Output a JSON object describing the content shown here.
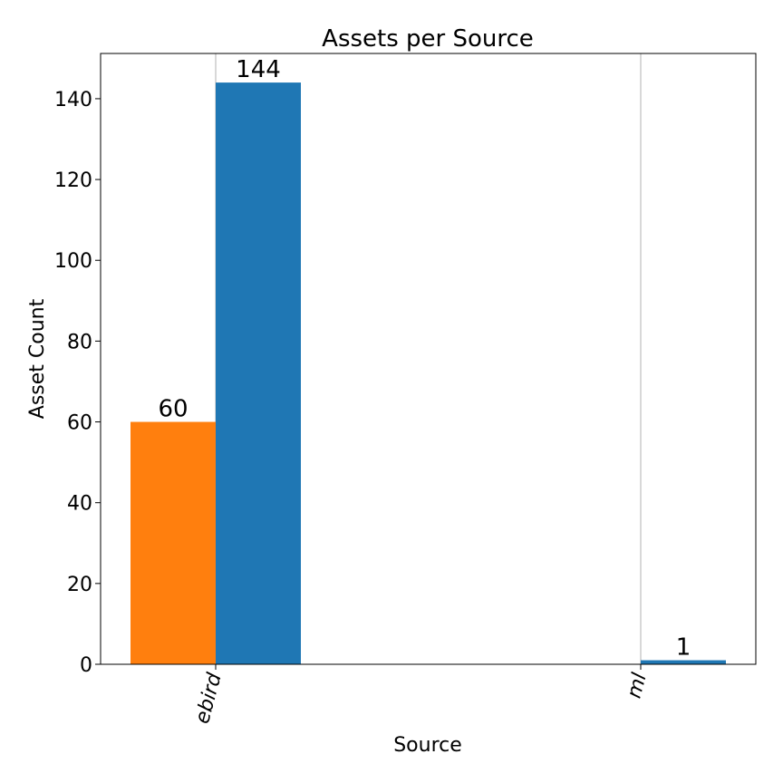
{
  "chart_data": {
    "type": "bar",
    "title": "Assets per Source",
    "xlabel": "Source",
    "ylabel": "Asset Count",
    "categories": [
      "ebird",
      "ml"
    ],
    "series": [
      {
        "color": "#ff7f0e",
        "values": [
          60,
          null
        ]
      },
      {
        "color": "#1f77b4",
        "values": [
          144,
          1
        ]
      }
    ],
    "ylim": [
      0,
      151.2
    ],
    "yticks": [
      0,
      20,
      40,
      60,
      80,
      100,
      120,
      140
    ],
    "vertical_grid": true,
    "xtick_rotation": "rotated"
  }
}
